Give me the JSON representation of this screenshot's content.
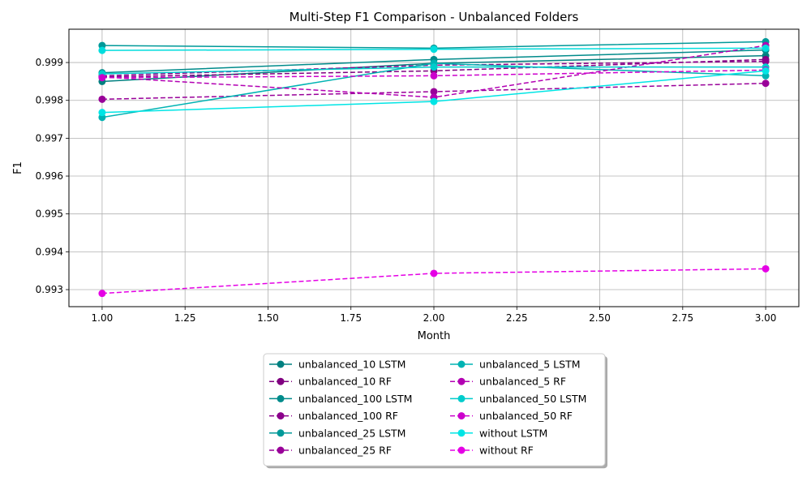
{
  "chart_data": {
    "type": "line",
    "title": "Multi-Step F1 Comparison - Unbalanced Folders",
    "xlabel": "Month",
    "ylabel": "F1",
    "x": [
      1,
      2,
      3
    ],
    "xlim": [
      0.9,
      3.1
    ],
    "ylim": [
      0.99255,
      0.99988
    ],
    "xticks": [
      "1.00",
      "1.25",
      "1.50",
      "1.75",
      "2.00",
      "2.25",
      "2.50",
      "2.75",
      "3.00"
    ],
    "xtick_values": [
      1.0,
      1.25,
      1.5,
      1.75,
      2.0,
      2.25,
      2.5,
      2.75,
      3.0
    ],
    "yticks": [
      "0.993",
      "0.994",
      "0.995",
      "0.996",
      "0.997",
      "0.998",
      "0.999"
    ],
    "ytick_values": [
      0.993,
      0.994,
      0.995,
      0.996,
      0.997,
      0.998,
      0.999
    ],
    "grid": true,
    "legend_position": "bottom-center",
    "legend_columns": 2,
    "series": [
      {
        "name": "unbalanced_10 LSTM",
        "values": [
          0.9985,
          0.99898,
          0.99918
        ],
        "color": "#008080",
        "dash": "solid"
      },
      {
        "name": "unbalanced_10 RF",
        "values": [
          0.99862,
          0.99878,
          0.99908
        ],
        "color": "#800080",
        "dash": "dashed"
      },
      {
        "name": "unbalanced_100 LSTM",
        "values": [
          0.99873,
          0.99908,
          0.99933
        ],
        "color": "#008b8b",
        "dash": "solid"
      },
      {
        "name": "unbalanced_100 RF",
        "values": [
          0.99865,
          0.99893,
          0.99903
        ],
        "color": "#8b008b",
        "dash": "dashed"
      },
      {
        "name": "unbalanced_25 LSTM",
        "values": [
          0.99945,
          0.99938,
          0.99955
        ],
        "color": "#009999",
        "dash": "solid"
      },
      {
        "name": "unbalanced_25 RF",
        "values": [
          0.99803,
          0.99823,
          0.99845
        ],
        "color": "#990099",
        "dash": "dashed"
      },
      {
        "name": "unbalanced_5 LSTM",
        "values": [
          0.99755,
          0.99898,
          0.99865
        ],
        "color": "#00b3b3",
        "dash": "solid"
      },
      {
        "name": "unbalanced_5 RF",
        "values": [
          0.99862,
          0.99808,
          0.99945
        ],
        "color": "#b300b3",
        "dash": "dashed"
      },
      {
        "name": "unbalanced_50 LSTM",
        "values": [
          0.9987,
          0.99888,
          0.99888
        ],
        "color": "#00cccc",
        "dash": "solid"
      },
      {
        "name": "unbalanced_50 RF",
        "values": [
          0.9986,
          0.99865,
          0.9988
        ],
        "color": "#cc00cc",
        "dash": "dashed"
      },
      {
        "name": "without LSTM",
        "values": [
          0.99768,
          0.99797,
          0.99878
        ],
        "color": "#00e5e5",
        "dash": "solid"
      },
      {
        "name": "without RF",
        "values": [
          0.9929,
          0.99343,
          0.99355
        ],
        "color": "#e500e5",
        "dash": "dashed"
      },
      {
        "name": "",
        "values": [
          0.99932,
          0.99935,
          0.99938
        ],
        "color": "#00dddd",
        "dash": "solid",
        "legend": false
      }
    ]
  }
}
